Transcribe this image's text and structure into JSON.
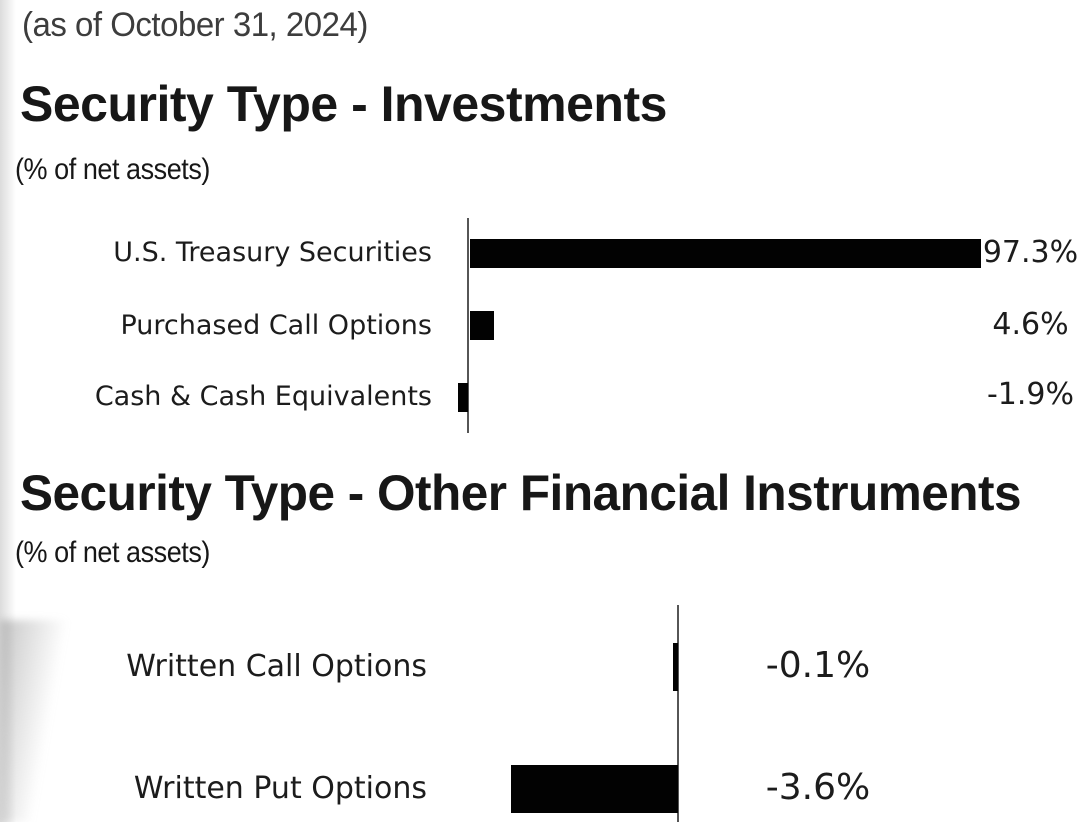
{
  "page": {
    "as_of_line": "(as of October 31, 2024)"
  },
  "chart_data": [
    {
      "type": "bar",
      "orientation": "horizontal",
      "title": "Security Type - Investments",
      "subtitle": "(% of net assets)",
      "categories": [
        "U.S. Treasury Securities",
        "Purchased Call Options",
        "Cash & Cash Equivalents"
      ],
      "values": [
        97.3,
        4.6,
        -1.9
      ],
      "value_labels": [
        "97.3%",
        "4.6%",
        "-1.9%"
      ],
      "unit": "% of net assets",
      "bar_color": "#000000",
      "axis_color": "#565656",
      "xlim": [
        -2,
        100
      ],
      "grid": false,
      "legend": "none",
      "value_label_position": "right-column"
    },
    {
      "type": "bar",
      "orientation": "horizontal",
      "title": "Security Type - Other Financial Instruments",
      "subtitle": "(% of net assets)",
      "categories": [
        "Written Call Options",
        "Written Put Options"
      ],
      "values": [
        -0.1,
        -3.6
      ],
      "value_labels": [
        "-0.1%",
        "-3.6%"
      ],
      "unit": "% of net assets",
      "bar_color": "#000000",
      "axis_color": "#565656",
      "xlim": [
        -3.6,
        0
      ],
      "grid": false,
      "legend": "none",
      "value_label_position": "right-column"
    }
  ]
}
